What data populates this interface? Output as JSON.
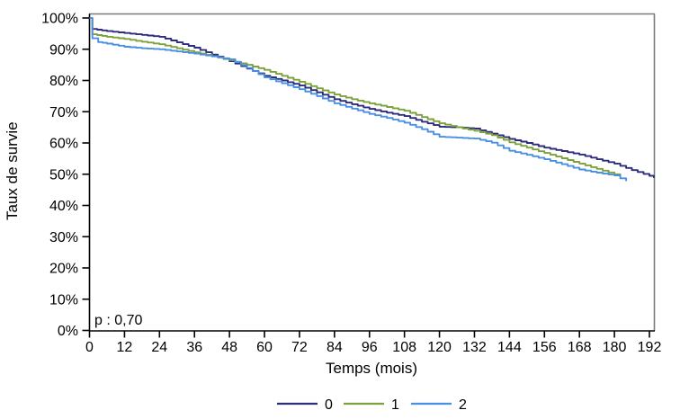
{
  "chart_data": {
    "type": "line",
    "subtype": "kaplan-meier-survival-steps",
    "title": "",
    "xlabel": "Temps (mois)",
    "ylabel": "Taux de survie",
    "annotation_p_value": "p : 0,70",
    "xlim": [
      0,
      192
    ],
    "ylim": [
      0,
      100
    ],
    "x_ticks": [
      0,
      12,
      24,
      36,
      48,
      60,
      72,
      84,
      96,
      108,
      120,
      132,
      144,
      156,
      168,
      180,
      192
    ],
    "y_tick_values": [
      0,
      10,
      20,
      30,
      40,
      50,
      60,
      70,
      80,
      90,
      100
    ],
    "y_tick_labels": [
      "0%",
      "10%",
      "20%",
      "30%",
      "40%",
      "50%",
      "60%",
      "70%",
      "80%",
      "90%",
      "100%"
    ],
    "grid": false,
    "legend_position": "bottom-center",
    "colors": {
      "axis": "#000000",
      "border": "#7b7b7b",
      "background": "#ffffff"
    },
    "series": [
      {
        "name": "0",
        "color": "#2e2d7c",
        "points": [
          [
            0,
            100
          ],
          [
            1,
            96.5
          ],
          [
            6,
            95.8
          ],
          [
            12,
            95.2
          ],
          [
            18,
            94.6
          ],
          [
            24,
            94.0
          ],
          [
            30,
            92.2
          ],
          [
            36,
            90.5
          ],
          [
            42,
            88.3
          ],
          [
            48,
            86.2
          ],
          [
            54,
            83.8
          ],
          [
            60,
            81.5
          ],
          [
            66,
            80.0
          ],
          [
            72,
            78.4
          ],
          [
            78,
            76.2
          ],
          [
            84,
            74.0
          ],
          [
            90,
            72.4
          ],
          [
            96,
            70.9
          ],
          [
            102,
            69.7
          ],
          [
            108,
            68.6
          ],
          [
            114,
            66.8
          ],
          [
            120,
            65.2
          ],
          [
            126,
            65.0
          ],
          [
            132,
            64.6
          ],
          [
            138,
            63.0
          ],
          [
            144,
            61.3
          ],
          [
            150,
            60.0
          ],
          [
            156,
            58.5
          ],
          [
            162,
            57.4
          ],
          [
            168,
            56.3
          ],
          [
            174,
            54.8
          ],
          [
            180,
            53.4
          ],
          [
            186,
            51.3
          ],
          [
            192,
            49.5
          ],
          [
            193.5,
            48.8
          ]
        ]
      },
      {
        "name": "1",
        "color": "#7da23c",
        "points": [
          [
            0,
            100
          ],
          [
            1,
            94.8
          ],
          [
            6,
            94.0
          ],
          [
            12,
            93.3
          ],
          [
            18,
            92.4
          ],
          [
            24,
            91.6
          ],
          [
            30,
            90.3
          ],
          [
            36,
            89.0
          ],
          [
            42,
            87.8
          ],
          [
            48,
            86.5
          ],
          [
            54,
            85.0
          ],
          [
            60,
            83.4
          ],
          [
            66,
            81.5
          ],
          [
            72,
            79.6
          ],
          [
            78,
            77.5
          ],
          [
            84,
            75.5
          ],
          [
            90,
            74.0
          ],
          [
            96,
            72.7
          ],
          [
            102,
            71.5
          ],
          [
            108,
            70.3
          ],
          [
            114,
            68.3
          ],
          [
            120,
            66.3
          ],
          [
            126,
            65.0
          ],
          [
            132,
            63.9
          ],
          [
            138,
            62.5
          ],
          [
            144,
            60.2
          ],
          [
            150,
            58.5
          ],
          [
            156,
            56.8
          ],
          [
            162,
            55.1
          ],
          [
            168,
            53.4
          ],
          [
            174,
            51.7
          ],
          [
            180,
            50.0
          ],
          [
            182,
            49.2
          ]
        ]
      },
      {
        "name": "2",
        "color": "#4a90e2",
        "points": [
          [
            0,
            100
          ],
          [
            1,
            93.5
          ],
          [
            3,
            92.3
          ],
          [
            6,
            91.8
          ],
          [
            12,
            90.8
          ],
          [
            18,
            90.3
          ],
          [
            24,
            90.0
          ],
          [
            30,
            89.3
          ],
          [
            36,
            88.6
          ],
          [
            42,
            87.7
          ],
          [
            48,
            86.8
          ],
          [
            54,
            84.0
          ],
          [
            60,
            81.0
          ],
          [
            66,
            79.1
          ],
          [
            72,
            77.2
          ],
          [
            78,
            75.0
          ],
          [
            84,
            72.7
          ],
          [
            90,
            71.0
          ],
          [
            96,
            69.3
          ],
          [
            102,
            68.0
          ],
          [
            108,
            66.5
          ],
          [
            114,
            64.4
          ],
          [
            120,
            62.0
          ],
          [
            126,
            61.7
          ],
          [
            132,
            61.4
          ],
          [
            138,
            60.1
          ],
          [
            144,
            57.5
          ],
          [
            150,
            56.2
          ],
          [
            156,
            54.8
          ],
          [
            162,
            53.2
          ],
          [
            168,
            51.5
          ],
          [
            174,
            50.5
          ],
          [
            180,
            49.6
          ],
          [
            184,
            47.8
          ]
        ]
      }
    ]
  }
}
